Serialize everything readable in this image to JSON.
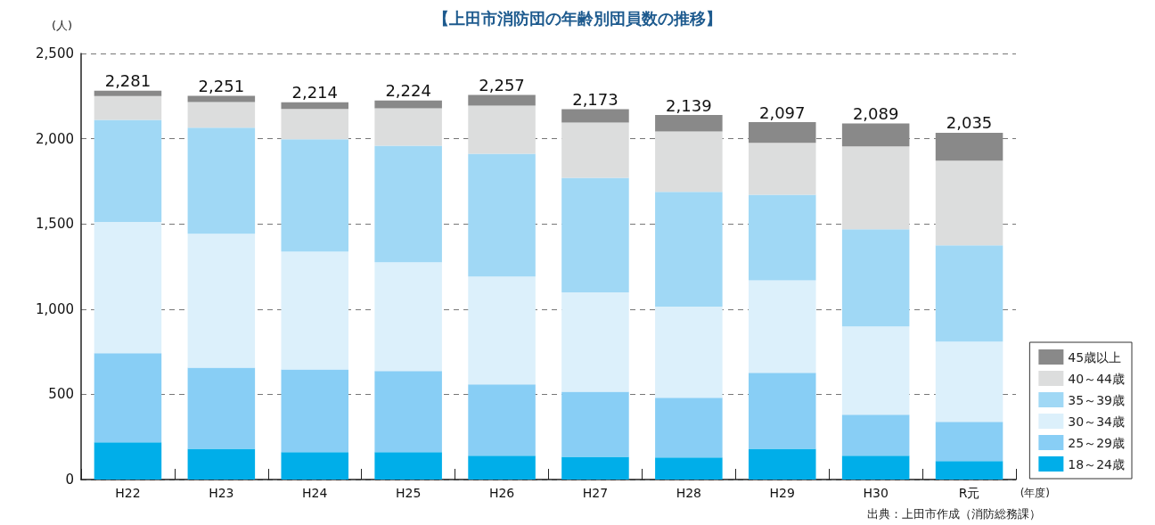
{
  "chart_data": {
    "type": "bar",
    "stacked": true,
    "title": "【上田市消防団の年齢別団員数の推移】",
    "categories": [
      "H22",
      "H23",
      "H24",
      "H25",
      "H26",
      "H27",
      "H28",
      "H29",
      "H30",
      "R元"
    ],
    "series": [
      {
        "name": "18～24歳",
        "color": "#00aee9",
        "values": [
          218,
          181,
          161,
          161,
          140,
          134,
          129,
          181,
          140,
          108
        ]
      },
      {
        "name": "25～29歳",
        "color": "#88cef5",
        "values": [
          523,
          476,
          485,
          476,
          418,
          381,
          351,
          445,
          241,
          230
        ]
      },
      {
        "name": "30～34歳",
        "color": "#dcf0fb",
        "values": [
          770,
          785,
          691,
          638,
          633,
          583,
          534,
          543,
          517,
          471
        ]
      },
      {
        "name": "35～39歳",
        "color": "#a0d8f5",
        "values": [
          599,
          622,
          659,
          684,
          721,
          672,
          674,
          502,
          570,
          565
        ]
      },
      {
        "name": "40～44歳",
        "color": "#dcdddd",
        "values": [
          140,
          151,
          178,
          219,
          282,
          325,
          355,
          305,
          487,
          497
        ]
      },
      {
        "name": "45歳以上",
        "color": "#898989",
        "values": [
          31,
          36,
          40,
          46,
          63,
          78,
          96,
          121,
          134,
          164
        ]
      }
    ],
    "totals": [
      "2,281",
      "2,251",
      "2,214",
      "2,224",
      "2,257",
      "2,173",
      "2,139",
      "2,097",
      "2,089",
      "2,035"
    ],
    "ylim": [
      0,
      2500
    ],
    "yticks": [
      0,
      {
        "value": 500,
        "label": "500"
      },
      {
        "value": 1000,
        "label": "1,000"
      },
      {
        "value": 1500,
        "label": "1,500"
      },
      {
        "value": 2000,
        "label": "2,000"
      },
      {
        "value": 2500,
        "label": "2,500"
      }
    ],
    "grid": "y",
    "legend": "bottom right",
    "annotations": [
      "(人)",
      "(年度)",
      "出典：上田市作成（消防総務課）"
    ]
  }
}
